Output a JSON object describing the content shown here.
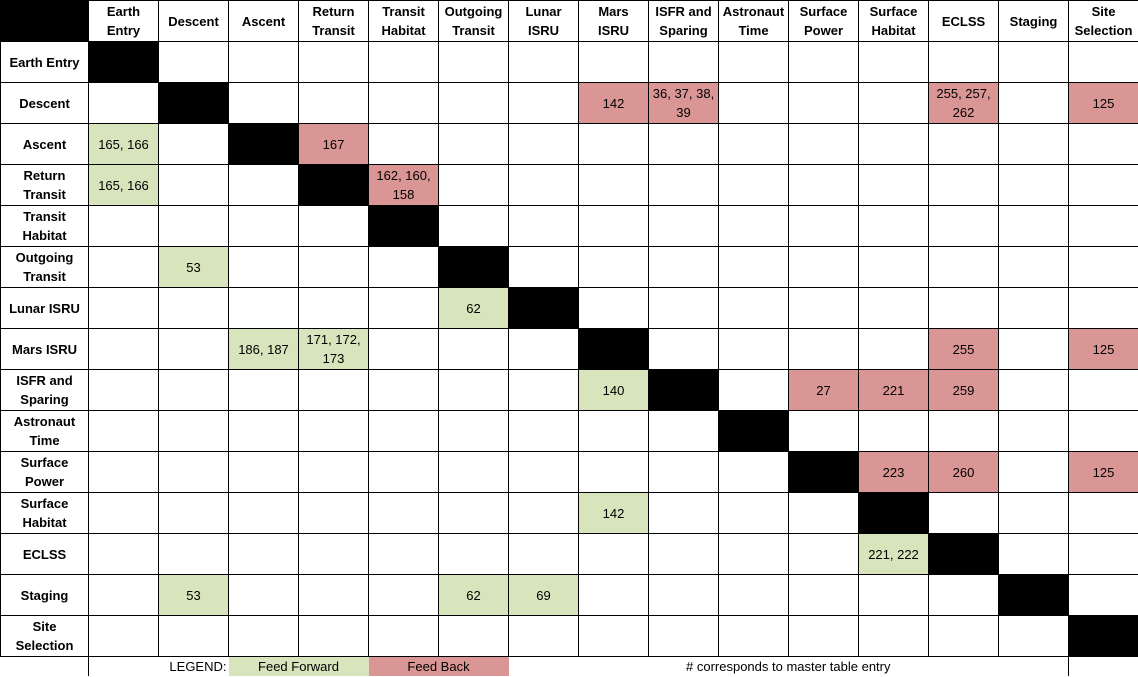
{
  "columns": [
    "Earth Entry",
    "Descent",
    "Ascent",
    "Return Transit",
    "Transit Habitat",
    "Outgoing Transit",
    "Lunar ISRU",
    "Mars ISRU",
    "ISFR and Sparing",
    "Astronaut Time",
    "Surface Power",
    "Surface Habitat",
    "ECLSS",
    "Staging",
    "Site Selection"
  ],
  "rows": [
    {
      "label": "Earth Entry",
      "cells": [
        "",
        "",
        "",
        "",
        "",
        "",
        "",
        "",
        "",
        "",
        "",
        "",
        "",
        "",
        ""
      ],
      "types": [
        "D",
        "",
        "",
        "",
        "",
        "",
        "",
        "",
        "",
        "",
        "",
        "",
        "",
        "",
        ""
      ]
    },
    {
      "label": "Descent",
      "cells": [
        "",
        "",
        "",
        "",
        "",
        "",
        "",
        "142",
        "36, 37, 38, 39",
        "",
        "",
        "",
        "255, 257, 262",
        "",
        "125"
      ],
      "types": [
        "",
        "D",
        "",
        "",
        "",
        "",
        "",
        "fb",
        "fb",
        "",
        "",
        "",
        "fb",
        "",
        "fb"
      ]
    },
    {
      "label": "Ascent",
      "cells": [
        "165, 166",
        "",
        "",
        "167",
        "",
        "",
        "",
        "",
        "",
        "",
        "",
        "",
        "",
        "",
        ""
      ],
      "types": [
        "ff",
        "",
        "D",
        "fb",
        "",
        "",
        "",
        "",
        "",
        "",
        "",
        "",
        "",
        "",
        ""
      ]
    },
    {
      "label": "Return Transit",
      "cells": [
        "165, 166",
        "",
        "",
        "",
        "162, 160, 158",
        "",
        "",
        "",
        "",
        "",
        "",
        "",
        "",
        "",
        ""
      ],
      "types": [
        "ff",
        "",
        "",
        "D",
        "fb",
        "",
        "",
        "",
        "",
        "",
        "",
        "",
        "",
        "",
        ""
      ]
    },
    {
      "label": "Transit Habitat",
      "cells": [
        "",
        "",
        "",
        "",
        "",
        "",
        "",
        "",
        "",
        "",
        "",
        "",
        "",
        "",
        ""
      ],
      "types": [
        "",
        "",
        "",
        "",
        "D",
        "",
        "",
        "",
        "",
        "",
        "",
        "",
        "",
        "",
        ""
      ]
    },
    {
      "label": "Outgoing Transit",
      "cells": [
        "",
        "53",
        "",
        "",
        "",
        "",
        "",
        "",
        "",
        "",
        "",
        "",
        "",
        "",
        ""
      ],
      "types": [
        "",
        "ff",
        "",
        "",
        "",
        "D",
        "",
        "",
        "",
        "",
        "",
        "",
        "",
        "",
        ""
      ]
    },
    {
      "label": "Lunar ISRU",
      "cells": [
        "",
        "",
        "",
        "",
        "",
        "62",
        "",
        "",
        "",
        "",
        "",
        "",
        "",
        "",
        ""
      ],
      "types": [
        "",
        "",
        "",
        "",
        "",
        "ff",
        "D",
        "",
        "",
        "",
        "",
        "",
        "",
        "",
        ""
      ]
    },
    {
      "label": "Mars ISRU",
      "cells": [
        "",
        "",
        "186, 187",
        "171, 172, 173",
        "",
        "",
        "",
        "",
        "",
        "",
        "",
        "",
        "255",
        "",
        "125"
      ],
      "types": [
        "",
        "",
        "ff",
        "ff",
        "",
        "",
        "",
        "D",
        "",
        "",
        "",
        "",
        "fb",
        "",
        "fb"
      ]
    },
    {
      "label": "ISFR and Sparing",
      "cells": [
        "",
        "",
        "",
        "",
        "",
        "",
        "",
        "140",
        "",
        "",
        "27",
        "221",
        "259",
        "",
        ""
      ],
      "types": [
        "",
        "",
        "",
        "",
        "",
        "",
        "",
        "ff",
        "D",
        "",
        "fb",
        "fb",
        "fb",
        "",
        ""
      ]
    },
    {
      "label": "Astronaut Time",
      "cells": [
        "",
        "",
        "",
        "",
        "",
        "",
        "",
        "",
        "",
        "",
        "",
        "",
        "",
        "",
        ""
      ],
      "types": [
        "",
        "",
        "",
        "",
        "",
        "",
        "",
        "",
        "",
        "D",
        "",
        "",
        "",
        "",
        ""
      ]
    },
    {
      "label": "Surface Power",
      "cells": [
        "",
        "",
        "",
        "",
        "",
        "",
        "",
        "",
        "",
        "",
        "",
        "223",
        "260",
        "",
        "125"
      ],
      "types": [
        "",
        "",
        "",
        "",
        "",
        "",
        "",
        "",
        "",
        "",
        "D",
        "fb",
        "fb",
        "",
        "fb"
      ]
    },
    {
      "label": "Surface Habitat",
      "cells": [
        "",
        "",
        "",
        "",
        "",
        "",
        "",
        "142",
        "",
        "",
        "",
        "",
        "",
        "",
        ""
      ],
      "types": [
        "",
        "",
        "",
        "",
        "",
        "",
        "",
        "ff",
        "",
        "",
        "",
        "D",
        "",
        "",
        ""
      ]
    },
    {
      "label": "ECLSS",
      "cells": [
        "",
        "",
        "",
        "",
        "",
        "",
        "",
        "",
        "",
        "",
        "",
        "221, 222",
        "",
        "",
        ""
      ],
      "types": [
        "",
        "",
        "",
        "",
        "",
        "",
        "",
        "",
        "",
        "",
        "",
        "ff",
        "D",
        "",
        ""
      ]
    },
    {
      "label": "Staging",
      "cells": [
        "",
        "53",
        "",
        "",
        "",
        "62",
        "69",
        "",
        "",
        "",
        "",
        "",
        "",
        "",
        ""
      ],
      "types": [
        "",
        "ff",
        "",
        "",
        "",
        "ff",
        "ff",
        "",
        "",
        "",
        "",
        "",
        "",
        "D",
        ""
      ]
    },
    {
      "label": "Site Selection",
      "cells": [
        "",
        "",
        "",
        "",
        "",
        "",
        "",
        "",
        "",
        "",
        "",
        "",
        "",
        "",
        ""
      ],
      "types": [
        "",
        "",
        "",
        "",
        "",
        "",
        "",
        "",
        "",
        "",
        "",
        "",
        "",
        "",
        "D"
      ]
    }
  ],
  "legend": {
    "label": "LEGEND:",
    "feed_forward": "Feed Forward",
    "feed_back": "Feed Back",
    "note": "# corresponds to master table entry"
  },
  "colors": {
    "feed_forward": "#d8e4bc",
    "feed_back": "#da9694",
    "diagonal": "#000000"
  }
}
